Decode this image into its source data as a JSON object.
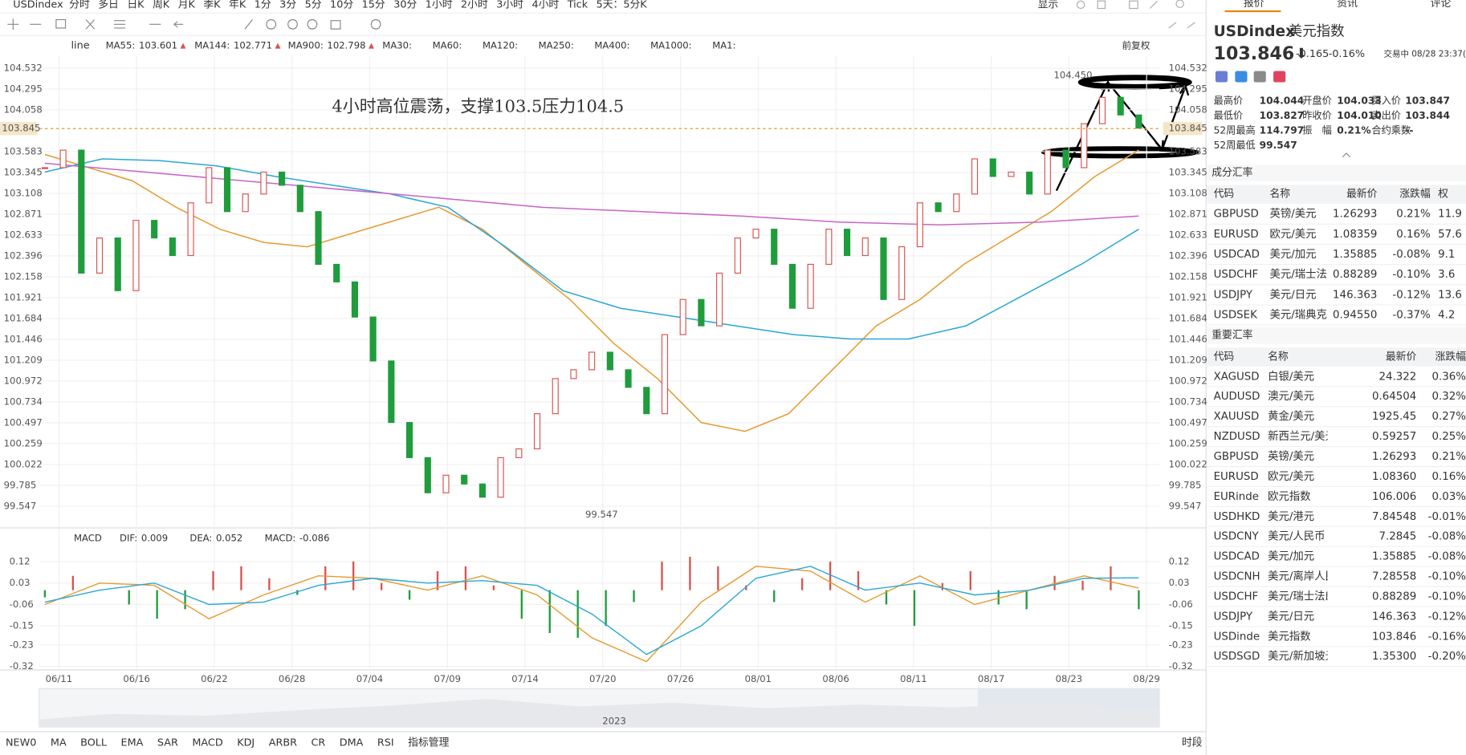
{
  "toolbar": {
    "symbol": "USDindex",
    "periods": [
      "分时",
      "多日",
      "日K",
      "周K",
      "月K",
      "季K",
      "年K",
      "1分",
      "3分",
      "5分",
      "10分",
      "15分",
      "30分",
      "1小时",
      "2小时",
      "3小时",
      "4小时",
      "Tick",
      "5天：5分K"
    ],
    "active_period": "4小时",
    "display": "显示"
  },
  "chart_data": {
    "type": "line",
    "color": "#333333",
    "up_color": "#d9534f",
    "down_color": "#1f9c3c",
    "values": [
      103.4,
      103.6,
      102.2,
      102.6,
      102.0,
      102.8,
      102.6,
      102.4,
      103.0,
      103.4,
      102.9,
      103.1,
      103.35,
      103.2,
      102.9,
      102.3,
      102.1,
      101.7,
      101.2,
      100.5,
      100.1,
      99.7,
      99.9,
      99.8,
      99.65,
      100.1,
      100.2,
      100.6,
      101.0,
      101.1,
      101.3,
      101.1,
      100.9,
      100.6,
      101.5,
      101.9,
      101.6,
      102.2,
      102.6,
      102.7,
      102.3,
      101.8,
      102.3,
      102.7,
      102.4,
      102.6,
      101.9,
      102.5,
      103.0,
      102.9,
      103.1,
      103.5,
      103.3,
      103.35,
      103.1,
      103.6,
      103.4,
      103.9,
      104.2,
      104.0,
      103.85
    ],
    "series": [
      {
        "name": "MA55:",
        "current": 103.601,
        "color": "#e69a2e",
        "values": [
          103.55,
          103.4,
          103.25,
          102.95,
          102.7,
          102.55,
          102.5,
          102.65,
          102.8,
          102.95,
          102.7,
          102.3,
          101.9,
          101.4,
          101.0,
          100.5,
          100.4,
          100.6,
          101.1,
          101.6,
          101.9,
          102.3,
          102.6,
          102.9,
          103.3,
          103.6
        ]
      },
      {
        "name": "MA144:",
        "current": 102.771,
        "color": "#2aa7d6",
        "values": [
          103.35,
          103.5,
          103.48,
          103.42,
          103.3,
          103.2,
          103.1,
          102.95,
          102.5,
          102.0,
          101.8,
          101.7,
          101.6,
          101.5,
          101.45,
          101.45,
          101.6,
          101.95,
          102.3,
          102.7
        ]
      },
      {
        "name": "MA900:",
        "current": 102.798,
        "color": "#c864c8",
        "values": [
          103.45,
          103.35,
          103.25,
          103.15,
          103.05,
          102.95,
          102.9,
          102.85,
          102.78,
          102.75,
          102.78,
          102.85
        ]
      }
    ],
    "inactive_ma": [
      "MA30:",
      "MA60:",
      "MA120:",
      "MA250:",
      "MA400:",
      "MA1000:",
      "MA1:"
    ],
    "adjust": "前复权",
    "annotation": "4小时高位震荡，支撑103.5压力104.5",
    "ylim": [
      99.3,
      104.67
    ],
    "yticks": [
      104.532,
      104.295,
      104.058,
      103.583,
      103.345,
      103.108,
      102.871,
      102.633,
      102.396,
      102.158,
      101.921,
      101.684,
      101.446,
      101.209,
      100.972,
      100.734,
      100.497,
      100.259,
      100.022,
      99.785,
      99.547
    ],
    "last_price": 103.845,
    "high_label": 104.45,
    "high_text": "104.450",
    "low_label": 99.547,
    "x_labels": [
      "06/11",
      "06/16",
      "06/22",
      "06/28",
      "07/04",
      "07/09",
      "07/14",
      "07/20",
      "07/26",
      "08/01",
      "08/06",
      "08/11",
      "08/17",
      "08/23",
      "08/29"
    ],
    "year": "2023",
    "grid": true
  },
  "macd": {
    "title": "MACD",
    "ylim": [
      -0.335,
      0.175
    ],
    "yticks": [
      0.12,
      0.03,
      -0.06,
      -0.15,
      -0.23,
      -0.32
    ],
    "dif": {
      "name": "DIF:",
      "current": 0.009,
      "color": "#e69a2e",
      "values": [
        -0.06,
        0.03,
        0.02,
        -0.12,
        -0.02,
        0.06,
        0.05,
        0.0,
        0.06,
        -0.02,
        -0.2,
        -0.3,
        -0.05,
        0.1,
        0.08,
        -0.05,
        0.06,
        -0.06,
        0.0,
        0.06,
        0.009
      ]
    },
    "dea": {
      "name": "DEA:",
      "current": 0.052,
      "color": "#2aa7d6",
      "values": [
        -0.05,
        0.0,
        0.03,
        -0.06,
        -0.05,
        0.02,
        0.05,
        0.03,
        0.04,
        0.02,
        -0.1,
        -0.27,
        -0.15,
        0.05,
        0.1,
        0.0,
        0.03,
        -0.02,
        0.0,
        0.05,
        0.052
      ]
    },
    "hist": {
      "name": "MACD:",
      "current": -0.086,
      "color": "#c864c8",
      "values": [
        -0.03,
        0.06,
        0.0,
        -0.06,
        -0.12,
        -0.08,
        0.08,
        0.1,
        0.05,
        -0.02,
        0.1,
        0.12,
        0.03,
        -0.04,
        0.08,
        0.1,
        0.02,
        -0.12,
        -0.18,
        -0.2,
        -0.15,
        -0.05,
        0.12,
        0.14,
        0.1,
        0.02,
        -0.05,
        0.05,
        0.12,
        0.08,
        -0.06,
        -0.15,
        0.03,
        0.08,
        -0.06,
        -0.08,
        0.06,
        0.04,
        0.1,
        -0.08
      ]
    }
  },
  "indicators": {
    "items": [
      "NEW0",
      "MA",
      "BOLL",
      "EMA",
      "SAR",
      "MACD",
      "KDJ",
      "ARBR",
      "CR",
      "DMA",
      "RSI",
      "指标管理"
    ],
    "active": [
      "MA",
      "MACD",
      "指标管理"
    ],
    "right": "时段"
  },
  "panel": {
    "tabs": [
      "报价",
      "资讯",
      "评论"
    ],
    "code": "USDindex",
    "name": "美元指数",
    "price": "103.846",
    "arrow": "⬇",
    "change": "-0.165",
    "change_pct": "-0.16%",
    "status": "交易中 08/28 23:37(",
    "stats": [
      [
        "最高价",
        "104.044",
        "开盘价",
        "104.033",
        "买入价",
        "103.847"
      ],
      [
        "最低价",
        "103.827",
        "昨收价",
        "104.010",
        "卖出价",
        "103.844"
      ],
      [
        "52周最高",
        "114.797",
        "振　幅",
        "0.21%",
        "合约乘数",
        "--"
      ],
      [
        "52周最低",
        "99.547"
      ]
    ],
    "table1": {
      "title": "成分汇率",
      "headers": [
        "代码",
        "名称",
        "最新价",
        "涨跌幅",
        "权"
      ],
      "rows": [
        [
          "GBPUSD",
          "英镑/美元",
          "1.26293",
          "0.21%",
          "11.9"
        ],
        [
          "EURUSD",
          "欧元/美元",
          "1.08359",
          "0.16%",
          "57.6"
        ],
        [
          "USDCAD",
          "美元/加元",
          "1.35885",
          "-0.08%",
          "9.1"
        ],
        [
          "USDCHF",
          "美元/瑞士法",
          "0.88289",
          "-0.10%",
          "3.6"
        ],
        [
          "USDJPY",
          "美元/日元",
          "146.363",
          "-0.12%",
          "13.6"
        ],
        [
          "USDSEK",
          "美元/瑞典克",
          "0.94550",
          "-0.37%",
          "4.2"
        ]
      ]
    },
    "table2": {
      "title": "重要汇率",
      "headers": [
        "代码",
        "名称",
        "最新价",
        "涨跌幅"
      ],
      "rows": [
        [
          "XAGUSD",
          "白银/美元",
          "24.322",
          "0.36%"
        ],
        [
          "AUDUSD",
          "澳元/美元",
          "0.64504",
          "0.32%"
        ],
        [
          "XAUUSD",
          "黄金/美元",
          "1925.45",
          "0.27%"
        ],
        [
          "NZDUSD",
          "新西兰元/美元",
          "0.59257",
          "0.25%"
        ],
        [
          "GBPUSD",
          "英镑/美元",
          "1.26293",
          "0.21%"
        ],
        [
          "EURUSD",
          "欧元/美元",
          "1.08360",
          "0.16%"
        ],
        [
          "EURinde",
          "欧元指数",
          "106.006",
          "0.03%"
        ],
        [
          "USDHKD",
          "美元/港元",
          "7.84548",
          "-0.01%"
        ],
        [
          "USDCNY",
          "美元/人民币",
          "7.2845",
          "-0.08%"
        ],
        [
          "USDCAD",
          "美元/加元",
          "1.35885",
          "-0.08%"
        ],
        [
          "USDCNH",
          "美元/离岸人民币",
          "7.28558",
          "-0.10%"
        ],
        [
          "USDCHF",
          "美元/瑞士法郎",
          "0.88289",
          "-0.10%"
        ],
        [
          "USDJPY",
          "美元/日元",
          "146.363",
          "-0.12%"
        ],
        [
          "USDinde",
          "美元指数",
          "103.846",
          "-0.16%"
        ],
        [
          "USDSGD",
          "美元/新加坡元",
          "1.35300",
          "-0.20%"
        ]
      ]
    }
  }
}
